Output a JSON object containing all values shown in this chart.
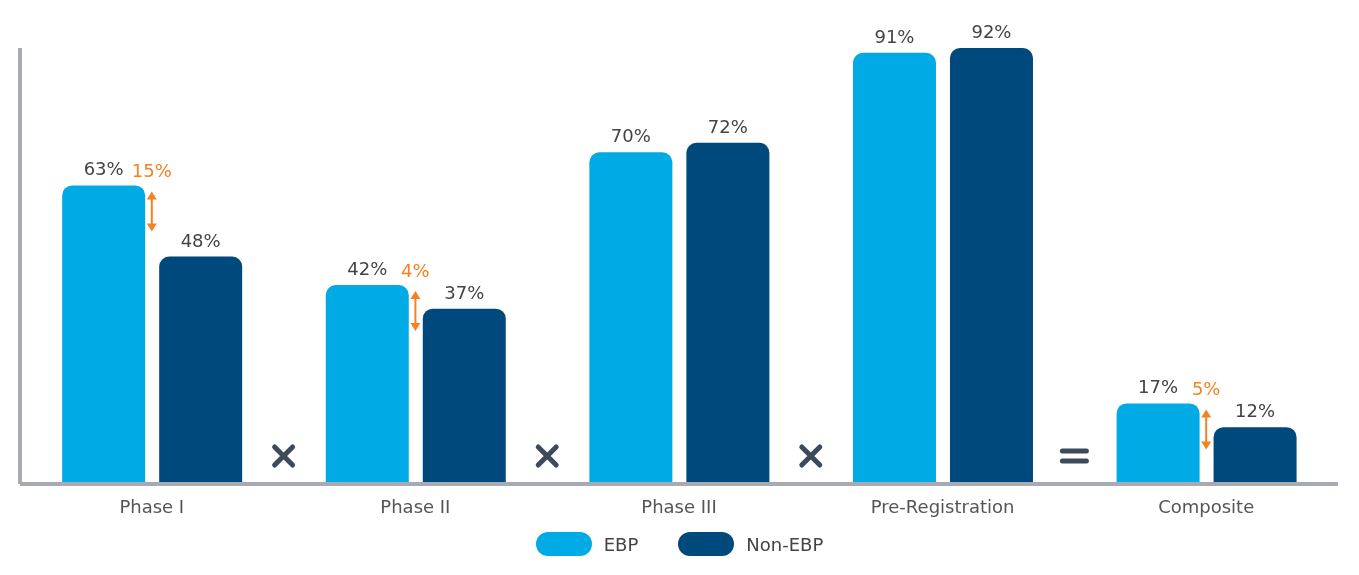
{
  "chart_data": {
    "type": "bar",
    "categories": [
      "Phase I",
      "Phase II",
      "Phase III",
      "Pre-Registration",
      "Composite"
    ],
    "series": [
      {
        "name": "EBP",
        "color": "#00aae4",
        "values": [
          63,
          42,
          70,
          91,
          17
        ],
        "value_labels": [
          "63%",
          "42%",
          "70%",
          "91%",
          "17%"
        ]
      },
      {
        "name": "Non-EBP",
        "color": "#00497c",
        "values": [
          48,
          37,
          72,
          92,
          12
        ],
        "value_labels": [
          "48%",
          "37%",
          "72%",
          "92%",
          "12%"
        ]
      }
    ],
    "legend": "bottom",
    "annotations": [
      "15%",
      "4%",
      "5%"
    ]
  }
}
